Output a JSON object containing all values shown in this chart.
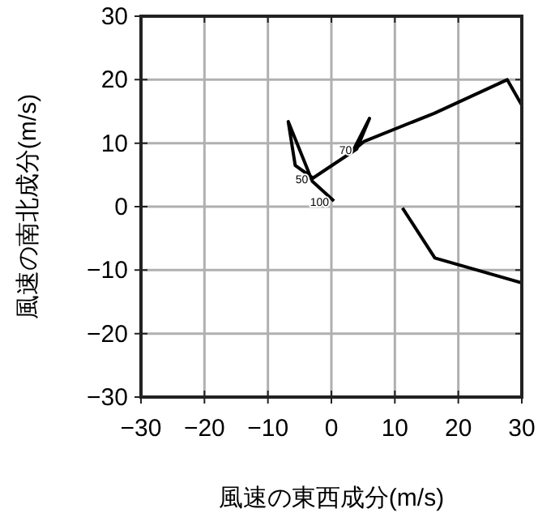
{
  "chart_data": {
    "type": "line",
    "xlabel": "風速の東西成分(m/s)",
    "ylabel": "風速の南北成分(m/s)",
    "xlim": [
      -30,
      30
    ],
    "ylim": [
      -30,
      30
    ],
    "xticks": [
      -30,
      -20,
      -10,
      0,
      10,
      20,
      30
    ],
    "yticks": [
      -30,
      -20,
      -10,
      0,
      10,
      20,
      30
    ],
    "grid": true,
    "series": [
      {
        "color": "#000000",
        "x": [
          0.4,
          -3.0,
          -6.8,
          -5.7,
          -2.9,
          4.0,
          6.0,
          3.4,
          5.2,
          16.2,
          27.7,
          30
        ],
        "values": [
          0.9,
          4.0,
          13.4,
          6.5,
          4.5,
          9.1,
          13.9,
          8.8,
          10.3,
          14.7,
          20.0,
          16
        ]
      },
      {
        "color": "#000000",
        "x": [
          11.2,
          16.3,
          30
        ],
        "values": [
          -0.2,
          -8.1,
          -12
        ]
      }
    ],
    "annotations": [
      {
        "text": "100",
        "x": 0.4,
        "y": 0.9
      },
      {
        "text": "70",
        "x": 4.0,
        "y": 9.1
      },
      {
        "text": "50",
        "x": -2.9,
        "y": 4.5
      }
    ]
  }
}
